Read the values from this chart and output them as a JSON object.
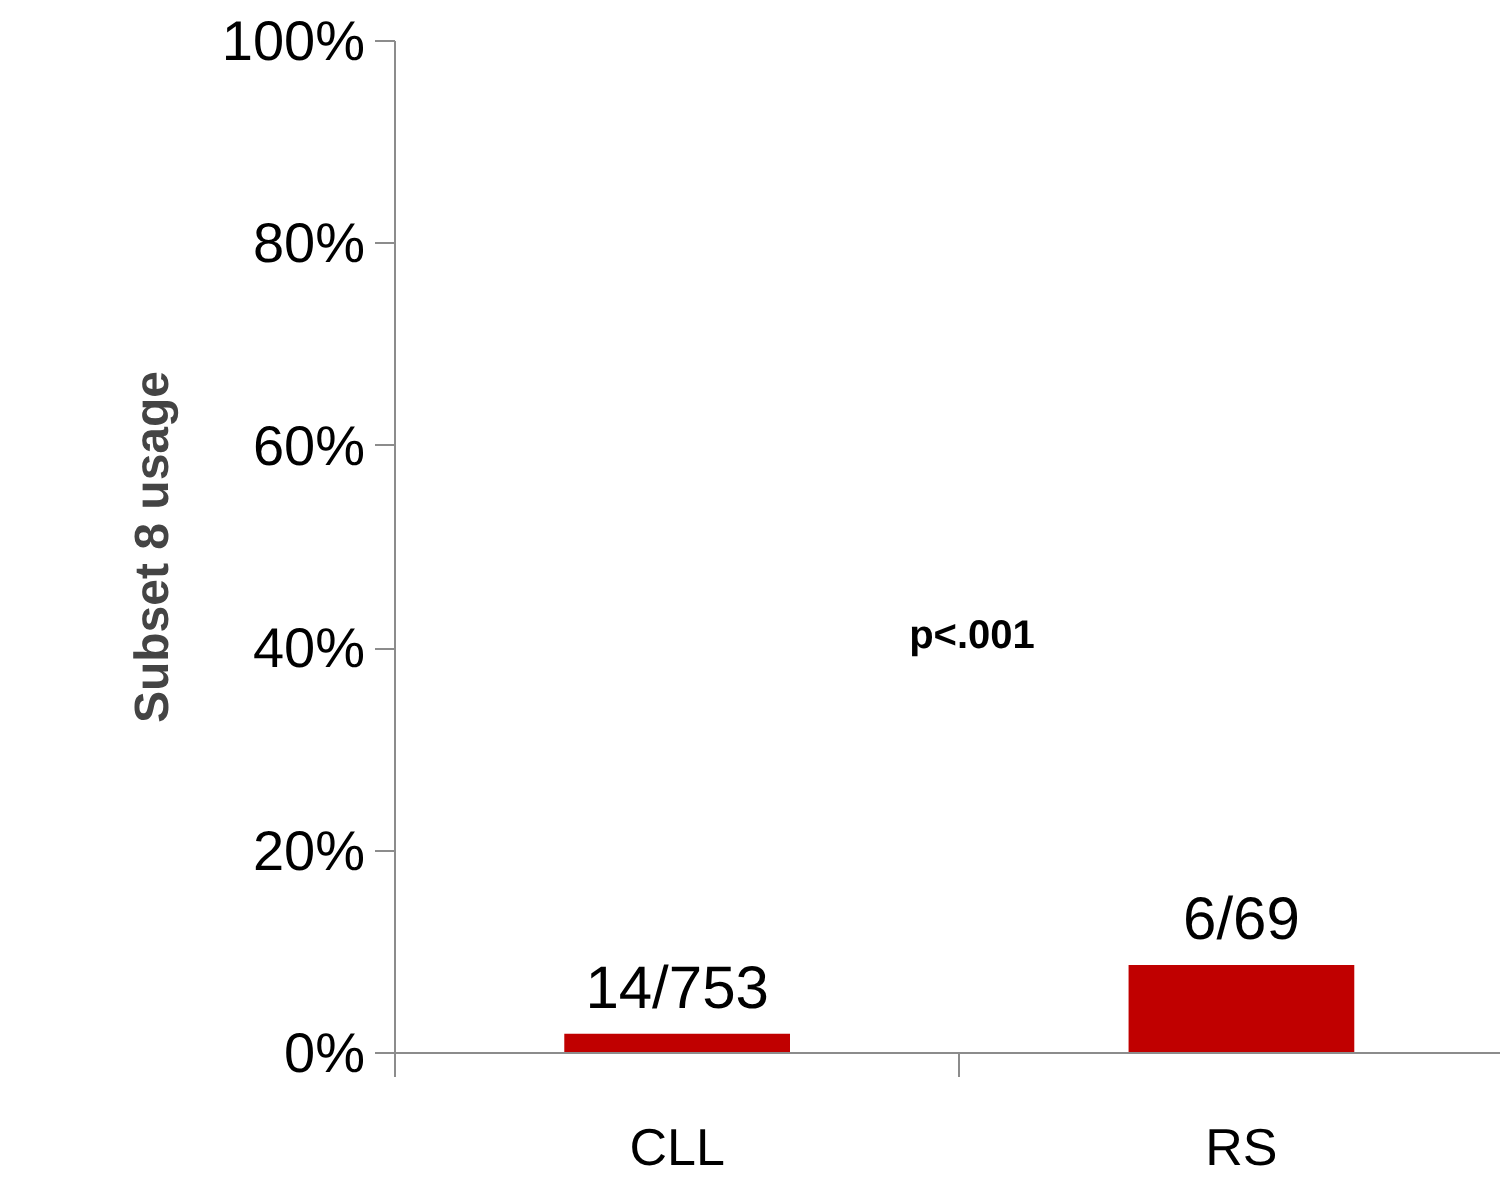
{
  "chart_data": {
    "type": "bar",
    "ylabel": "Subset 8 usage",
    "categories": [
      "CLL",
      "RS"
    ],
    "values": [
      1.9,
      8.7
    ],
    "color": "#c00000",
    "value_labels": [
      "14/753",
      "6/69"
    ],
    "ylim": [
      0,
      100
    ],
    "yticks": [
      {
        "value": 0,
        "label": "0%"
      },
      {
        "value": 20,
        "label": "20%"
      },
      {
        "value": 40,
        "label": "40%"
      },
      {
        "value": 60,
        "label": "60%"
      },
      {
        "value": 80,
        "label": "80%"
      },
      {
        "value": 100,
        "label": "100%"
      }
    ],
    "annotations": [
      "p<.001"
    ],
    "grid": false
  }
}
